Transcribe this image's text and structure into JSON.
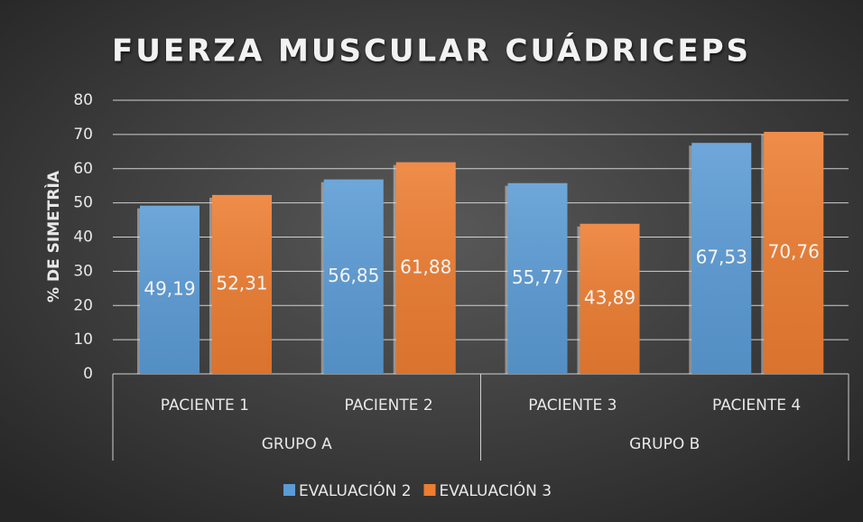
{
  "chart_data": {
    "type": "bar",
    "title": "FUERZA MUSCULAR CUÁDRICEPS",
    "y_label": "% DE SIMETRÌA",
    "categories": [
      "PACIENTE 1",
      "PACIENTE 2",
      "PACIENTE 3",
      "PACIENTE 4"
    ],
    "groups": [
      "GRUPO A",
      "GRUPO B"
    ],
    "series": [
      {
        "name": "EVALUACIÓN 2",
        "color": "#5b9bd5",
        "values": [
          49.19,
          56.85,
          55.77,
          67.53
        ],
        "value_labels": [
          "49,19",
          "56,85",
          "55,77",
          "67,53"
        ]
      },
      {
        "name": "EVALUACIÓN 3",
        "color": "#ed7d31",
        "values": [
          52.31,
          61.88,
          43.89,
          70.76
        ],
        "value_labels": [
          "52,31",
          "61,88",
          "43,89",
          "70,76"
        ]
      }
    ],
    "ylim": [
      0,
      80
    ],
    "yticks": [
      0,
      10,
      20,
      30,
      40,
      50,
      60,
      70,
      80
    ],
    "grid": true,
    "legend": "bottom"
  }
}
